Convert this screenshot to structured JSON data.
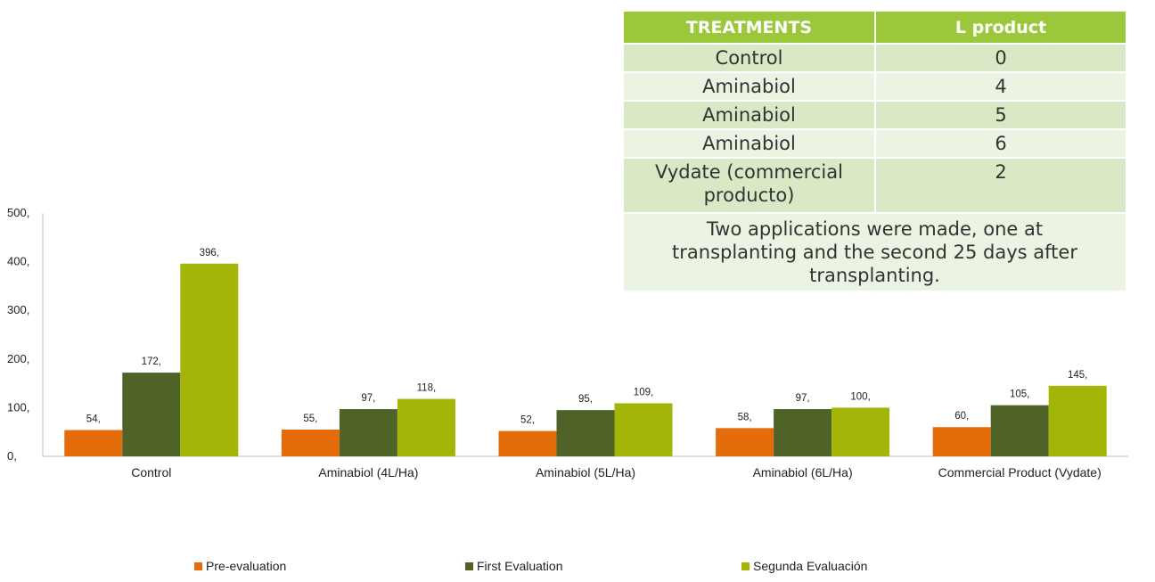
{
  "chart_data": {
    "type": "bar",
    "categories": [
      "Control",
      "Aminabiol (4L/Ha)",
      "Aminabiol (5L/Ha)",
      "Aminabiol (6L/Ha)",
      "Commercial Product (Vydate)"
    ],
    "series": [
      {
        "name": "Pre-evaluation",
        "color": "#e46c0a",
        "values": [
          54,
          55,
          52,
          58,
          60
        ],
        "labels": [
          "54,",
          "55,",
          "52,",
          "58,",
          "60,"
        ]
      },
      {
        "name": "First Evaluation",
        "color": "#4f6228",
        "values": [
          172,
          97,
          95,
          97,
          105
        ],
        "labels": [
          "172,",
          "97,",
          "95,",
          "97,",
          "105,"
        ]
      },
      {
        "name": "Segunda Evaluación",
        "color": "#a3b507",
        "values": [
          396,
          118,
          109,
          100,
          145
        ],
        "labels": [
          "396,",
          "118,",
          "109,",
          "100,",
          "145,"
        ]
      }
    ],
    "yticks": [
      "0,",
      "100,",
      "200,",
      "300,",
      "400,",
      "500,"
    ],
    "ylim": [
      0,
      500
    ],
    "grid": false,
    "legend_position": "bottom"
  },
  "table": {
    "headers": [
      "TREATMENTS",
      "L product"
    ],
    "rows": [
      {
        "treatment": "Control",
        "amount": "0"
      },
      {
        "treatment": "Aminabiol",
        "amount": "4"
      },
      {
        "treatment": "Aminabiol",
        "amount": "5"
      },
      {
        "treatment": "Aminabiol",
        "amount": "6"
      },
      {
        "treatment": "Vydate (commercial producto)",
        "amount": "2"
      }
    ],
    "note": "Two applications were made, one at transplanting and the second 25 days after transplanting.",
    "header_color": "#9bc83a",
    "row_colors": [
      "#d9e9c5",
      "#ebf3e2"
    ]
  }
}
